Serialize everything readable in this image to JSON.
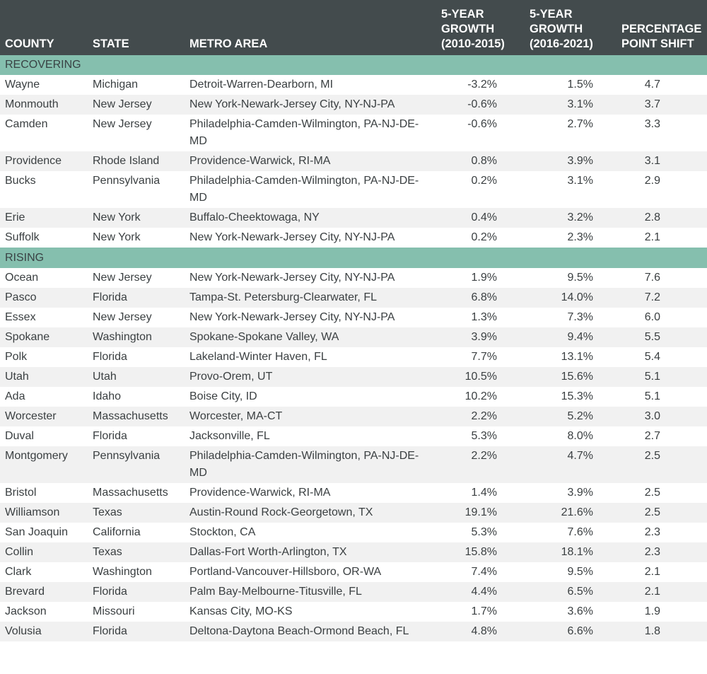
{
  "table": {
    "headers": {
      "county": [
        "COUNTY"
      ],
      "state": [
        "STATE"
      ],
      "metro": [
        "METRO AREA"
      ],
      "growth_1": [
        "5-YEAR",
        "GROWTH",
        "(2010-2015)"
      ],
      "growth_2": [
        "5-YEAR",
        "GROWTH",
        "(2016-2021)"
      ],
      "shift": [
        "PERCENTAGE",
        "POINT SHIFT"
      ]
    },
    "sections": [
      {
        "name": "RECOVERING",
        "rows": [
          {
            "county": "Wayne",
            "state": "Michigan",
            "metro": "Detroit-Warren-Dearborn, MI",
            "growth_2010_2015": "-3.2%",
            "growth_2016_2021": "1.5%",
            "shift": "4.7"
          },
          {
            "county": "Monmouth",
            "state": "New Jersey",
            "metro": "New York-Newark-Jersey City, NY-NJ-PA",
            "growth_2010_2015": "-0.6%",
            "growth_2016_2021": "3.1%",
            "shift": "3.7"
          },
          {
            "county": "Camden",
            "state": "New Jersey",
            "metro": "Philadelphia-Camden-Wilmington, PA-NJ-DE-MD",
            "growth_2010_2015": "-0.6%",
            "growth_2016_2021": "2.7%",
            "shift": "3.3"
          },
          {
            "county": "Providence",
            "state": "Rhode Island",
            "metro": "Providence-Warwick, RI-MA",
            "growth_2010_2015": "0.8%",
            "growth_2016_2021": "3.9%",
            "shift": "3.1"
          },
          {
            "county": "Bucks",
            "state": "Pennsylvania",
            "metro": "Philadelphia-Camden-Wilmington, PA-NJ-DE-MD",
            "growth_2010_2015": "0.2%",
            "growth_2016_2021": "3.1%",
            "shift": "2.9"
          },
          {
            "county": "Erie",
            "state": "New York",
            "metro": "Buffalo-Cheektowaga, NY",
            "growth_2010_2015": "0.4%",
            "growth_2016_2021": "3.2%",
            "shift": "2.8"
          },
          {
            "county": "Suffolk",
            "state": "New York",
            "metro": "New York-Newark-Jersey City, NY-NJ-PA",
            "growth_2010_2015": "0.2%",
            "growth_2016_2021": "2.3%",
            "shift": "2.1"
          }
        ]
      },
      {
        "name": "RISING",
        "rows": [
          {
            "county": "Ocean",
            "state": "New Jersey",
            "metro": "New York-Newark-Jersey City, NY-NJ-PA",
            "growth_2010_2015": "1.9%",
            "growth_2016_2021": "9.5%",
            "shift": "7.6"
          },
          {
            "county": "Pasco",
            "state": "Florida",
            "metro": "Tampa-St. Petersburg-Clearwater, FL",
            "growth_2010_2015": "6.8%",
            "growth_2016_2021": "14.0%",
            "shift": "7.2"
          },
          {
            "county": "Essex",
            "state": "New Jersey",
            "metro": "New York-Newark-Jersey City, NY-NJ-PA",
            "growth_2010_2015": "1.3%",
            "growth_2016_2021": "7.3%",
            "shift": "6.0"
          },
          {
            "county": "Spokane",
            "state": "Washington",
            "metro": "Spokane-Spokane Valley, WA",
            "growth_2010_2015": "3.9%",
            "growth_2016_2021": "9.4%",
            "shift": "5.5"
          },
          {
            "county": "Polk",
            "state": "Florida",
            "metro": "Lakeland-Winter Haven, FL",
            "growth_2010_2015": "7.7%",
            "growth_2016_2021": "13.1%",
            "shift": "5.4"
          },
          {
            "county": "Utah",
            "state": "Utah",
            "metro": "Provo-Orem, UT",
            "growth_2010_2015": "10.5%",
            "growth_2016_2021": "15.6%",
            "shift": "5.1"
          },
          {
            "county": "Ada",
            "state": "Idaho",
            "metro": "Boise City, ID",
            "growth_2010_2015": "10.2%",
            "growth_2016_2021": "15.3%",
            "shift": "5.1"
          },
          {
            "county": "Worcester",
            "state": "Massachusetts",
            "metro": "Worcester, MA-CT",
            "growth_2010_2015": "2.2%",
            "growth_2016_2021": "5.2%",
            "shift": "3.0"
          },
          {
            "county": "Duval",
            "state": "Florida",
            "metro": "Jacksonville, FL",
            "growth_2010_2015": "5.3%",
            "growth_2016_2021": "8.0%",
            "shift": "2.7"
          },
          {
            "county": "Montgomery",
            "state": "Pennsylvania",
            "metro": "Philadelphia-Camden-Wilmington, PA-NJ-DE-MD",
            "growth_2010_2015": "2.2%",
            "growth_2016_2021": "4.7%",
            "shift": "2.5"
          },
          {
            "county": "Bristol",
            "state": "Massachusetts",
            "metro": "Providence-Warwick, RI-MA",
            "growth_2010_2015": "1.4%",
            "growth_2016_2021": "3.9%",
            "shift": "2.5"
          },
          {
            "county": "Williamson",
            "state": "Texas",
            "metro": "Austin-Round Rock-Georgetown, TX",
            "growth_2010_2015": "19.1%",
            "growth_2016_2021": "21.6%",
            "shift": "2.5"
          },
          {
            "county": "San Joaquin",
            "state": "California",
            "metro": "Stockton, CA",
            "growth_2010_2015": "5.3%",
            "growth_2016_2021": "7.6%",
            "shift": "2.3"
          },
          {
            "county": "Collin",
            "state": "Texas",
            "metro": "Dallas-Fort Worth-Arlington, TX",
            "growth_2010_2015": "15.8%",
            "growth_2016_2021": "18.1%",
            "shift": "2.3"
          },
          {
            "county": "Clark",
            "state": "Washington",
            "metro": "Portland-Vancouver-Hillsboro, OR-WA",
            "growth_2010_2015": "7.4%",
            "growth_2016_2021": "9.5%",
            "shift": "2.1"
          },
          {
            "county": "Brevard",
            "state": "Florida",
            "metro": "Palm Bay-Melbourne-Titusville, FL",
            "growth_2010_2015": "4.4%",
            "growth_2016_2021": "6.5%",
            "shift": "2.1"
          },
          {
            "county": "Jackson",
            "state": "Missouri",
            "metro": "Kansas City, MO-KS",
            "growth_2010_2015": "1.7%",
            "growth_2016_2021": "3.6%",
            "shift": "1.9"
          },
          {
            "county": "Volusia",
            "state": "Florida",
            "metro": "Deltona-Daytona Beach-Ormond Beach, FL",
            "growth_2010_2015": "4.8%",
            "growth_2016_2021": "6.6%",
            "shift": "1.8"
          }
        ]
      }
    ]
  },
  "colors": {
    "header_bg": "#434b4d",
    "section_bg": "#85bfae",
    "row_stripe": "#f1f1f1",
    "text": "#3a3f41"
  },
  "chart_data": {
    "type": "table",
    "columns": [
      "COUNTY",
      "STATE",
      "METRO AREA",
      "5-YEAR GROWTH (2010-2015)",
      "5-YEAR GROWTH (2016-2021)",
      "PERCENTAGE POINT SHIFT"
    ],
    "groups": [
      {
        "name": "RECOVERING",
        "rows": [
          [
            "Wayne",
            "Michigan",
            "Detroit-Warren-Dearborn, MI",
            -3.2,
            1.5,
            4.7
          ],
          [
            "Monmouth",
            "New Jersey",
            "New York-Newark-Jersey City, NY-NJ-PA",
            -0.6,
            3.1,
            3.7
          ],
          [
            "Camden",
            "New Jersey",
            "Philadelphia-Camden-Wilmington, PA-NJ-DE-MD",
            -0.6,
            2.7,
            3.3
          ],
          [
            "Providence",
            "Rhode Island",
            "Providence-Warwick, RI-MA",
            0.8,
            3.9,
            3.1
          ],
          [
            "Bucks",
            "Pennsylvania",
            "Philadelphia-Camden-Wilmington, PA-NJ-DE-MD",
            0.2,
            3.1,
            2.9
          ],
          [
            "Erie",
            "New York",
            "Buffalo-Cheektowaga, NY",
            0.4,
            3.2,
            2.8
          ],
          [
            "Suffolk",
            "New York",
            "New York-Newark-Jersey City, NY-NJ-PA",
            0.2,
            2.3,
            2.1
          ]
        ]
      },
      {
        "name": "RISING",
        "rows": [
          [
            "Ocean",
            "New Jersey",
            "New York-Newark-Jersey City, NY-NJ-PA",
            1.9,
            9.5,
            7.6
          ],
          [
            "Pasco",
            "Florida",
            "Tampa-St. Petersburg-Clearwater, FL",
            6.8,
            14.0,
            7.2
          ],
          [
            "Essex",
            "New Jersey",
            "New York-Newark-Jersey City, NY-NJ-PA",
            1.3,
            7.3,
            6.0
          ],
          [
            "Spokane",
            "Washington",
            "Spokane-Spokane Valley, WA",
            3.9,
            9.4,
            5.5
          ],
          [
            "Polk",
            "Florida",
            "Lakeland-Winter Haven, FL",
            7.7,
            13.1,
            5.4
          ],
          [
            "Utah",
            "Utah",
            "Provo-Orem, UT",
            10.5,
            15.6,
            5.1
          ],
          [
            "Ada",
            "Idaho",
            "Boise City, ID",
            10.2,
            15.3,
            5.1
          ],
          [
            "Worcester",
            "Massachusetts",
            "Worcester, MA-CT",
            2.2,
            5.2,
            3.0
          ],
          [
            "Duval",
            "Florida",
            "Jacksonville, FL",
            5.3,
            8.0,
            2.7
          ],
          [
            "Montgomery",
            "Pennsylvania",
            "Philadelphia-Camden-Wilmington, PA-NJ-DE-MD",
            2.2,
            4.7,
            2.5
          ],
          [
            "Bristol",
            "Massachusetts",
            "Providence-Warwick, RI-MA",
            1.4,
            3.9,
            2.5
          ],
          [
            "Williamson",
            "Texas",
            "Austin-Round Rock-Georgetown, TX",
            19.1,
            21.6,
            2.5
          ],
          [
            "San Joaquin",
            "California",
            "Stockton, CA",
            5.3,
            7.6,
            2.3
          ],
          [
            "Collin",
            "Texas",
            "Dallas-Fort Worth-Arlington, TX",
            15.8,
            18.1,
            2.3
          ],
          [
            "Clark",
            "Washington",
            "Portland-Vancouver-Hillsboro, OR-WA",
            7.4,
            9.5,
            2.1
          ],
          [
            "Brevard",
            "Florida",
            "Palm Bay-Melbourne-Titusville, FL",
            4.4,
            6.5,
            2.1
          ],
          [
            "Jackson",
            "Missouri",
            "Kansas City, MO-KS",
            1.7,
            3.6,
            1.9
          ],
          [
            "Volusia",
            "Florida",
            "Deltona-Daytona Beach-Ormond Beach, FL",
            4.8,
            6.6,
            1.8
          ]
        ]
      }
    ]
  }
}
